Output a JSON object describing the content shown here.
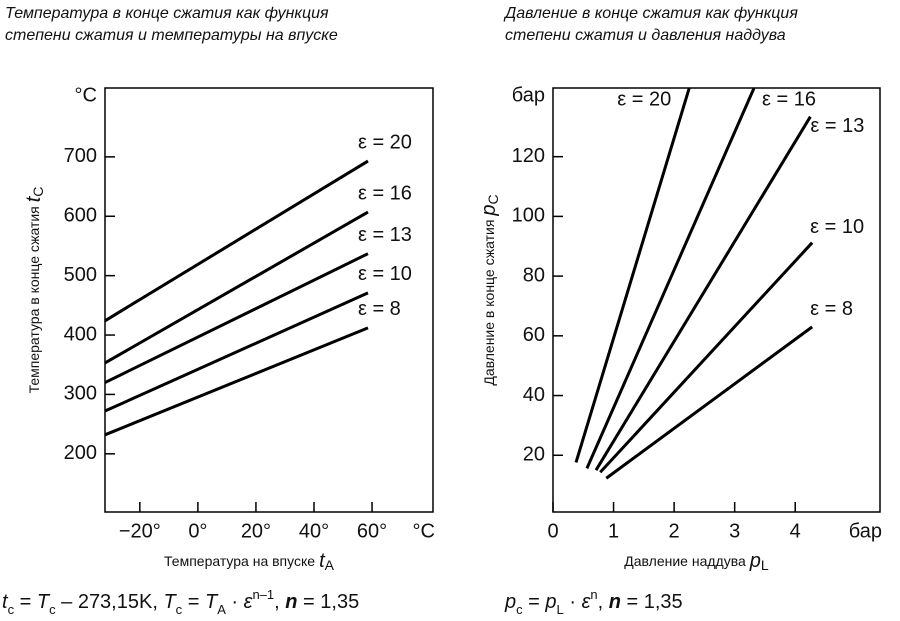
{
  "chart_data": [
    {
      "type": "line",
      "title": [
        "Температура в конце сжатия как функция",
        "степени сжатия и температуры на впуске"
      ],
      "ylabel": {
        "text": "Температура в конце сжатия",
        "symbol": "t",
        "sub": "C"
      },
      "xlabel": {
        "text": "Температура на впуске",
        "symbol": "t",
        "sub": "A"
      },
      "y_unit": "°C",
      "x_unit": "°C",
      "xlim": [
        -32,
        81
      ],
      "ylim": [
        102,
        816
      ],
      "xticks": [
        {
          "value": -20,
          "label": "−20°"
        },
        {
          "value": 0,
          "label": "0°"
        },
        {
          "value": 20,
          "label": "20°"
        },
        {
          "value": 40,
          "label": "40°"
        },
        {
          "value": 60,
          "label": "60°"
        }
      ],
      "yticks": [
        200,
        300,
        400,
        500,
        600,
        700
      ],
      "series": [
        {
          "name": "ε = 20",
          "color": "#000000",
          "x": [
            -32,
            58.6
          ],
          "values": [
            424,
            693
          ]
        },
        {
          "name": "ε = 16",
          "color": "#000000",
          "x": [
            -32,
            58.6
          ],
          "values": [
            353,
            607
          ]
        },
        {
          "name": "ε = 13",
          "color": "#000000",
          "x": [
            -32,
            58.6
          ],
          "values": [
            320,
            537
          ]
        },
        {
          "name": "ε = 10",
          "color": "#000000",
          "x": [
            -32,
            58.6
          ],
          "values": [
            272,
            471
          ]
        },
        {
          "name": "ε = 8",
          "color": "#000000",
          "x": [
            -32,
            58.6
          ],
          "values": [
            232,
            412
          ]
        }
      ],
      "formula": [
        [
          "t",
          "i"
        ],
        [
          "c",
          "sub"
        ],
        [
          " = ",
          "n"
        ],
        [
          "T",
          "i"
        ],
        [
          "c",
          "sub"
        ],
        [
          " – 273,15K, ",
          "n"
        ],
        [
          "T",
          "i"
        ],
        [
          "c",
          "sub"
        ],
        [
          " = ",
          "n"
        ],
        [
          "T",
          "i"
        ],
        [
          "A",
          "sub"
        ],
        [
          " · ",
          "n"
        ],
        [
          "ε",
          "i"
        ],
        [
          "n–1",
          "sup"
        ],
        [
          ", ",
          "n"
        ],
        [
          "n",
          "b"
        ],
        [
          " = 1,35",
          "n"
        ]
      ]
    },
    {
      "type": "line",
      "title": [
        "Давление в конце сжатия как функция",
        "степени сжатия и давления наддува"
      ],
      "ylabel": {
        "text": "Давление в конце сжатия",
        "symbol": "p",
        "sub": "C"
      },
      "xlabel": {
        "text": "Давление наддува",
        "symbol": "p",
        "sub": "L"
      },
      "y_unit": "бар",
      "x_unit": "бар",
      "xlim": [
        0,
        5.4
      ],
      "ylim": [
        1,
        143
      ],
      "xticks": [
        0,
        1,
        2,
        3,
        4
      ],
      "yticks": [
        20,
        40,
        60,
        80,
        100,
        120
      ],
      "series": [
        {
          "name": "ε = 20",
          "color": "#000000",
          "x": [
            0.38,
            2.25
          ],
          "values": [
            17.6,
            143
          ]
        },
        {
          "name": "ε = 16",
          "color": "#000000",
          "x": [
            0.56,
            3.32
          ],
          "values": [
            15.6,
            143
          ]
        },
        {
          "name": "ε = 13",
          "color": "#000000",
          "x": [
            0.71,
            4.25
          ],
          "values": [
            15,
            133.4
          ]
        },
        {
          "name": "ε = 10",
          "color": "#000000",
          "x": [
            0.78,
            4.28
          ],
          "values": [
            14.3,
            91.2
          ]
        },
        {
          "name": "ε = 8",
          "color": "#000000",
          "x": [
            0.88,
            4.28
          ],
          "values": [
            12.3,
            63
          ]
        }
      ],
      "formula": [
        [
          "p",
          "i"
        ],
        [
          "c",
          "sub"
        ],
        [
          " = ",
          "n"
        ],
        [
          "p",
          "i"
        ],
        [
          "L",
          "sub"
        ],
        [
          " · ",
          "n"
        ],
        [
          "ε",
          "i"
        ],
        [
          "n",
          "sup"
        ],
        [
          ", ",
          "n"
        ],
        [
          "n",
          "b"
        ],
        [
          " = 1,35",
          "n"
        ]
      ]
    }
  ]
}
